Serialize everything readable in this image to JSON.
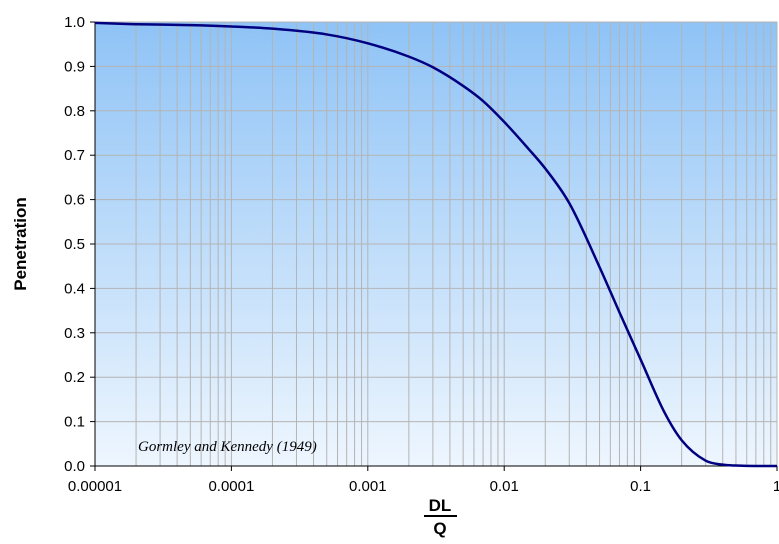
{
  "chart_data": {
    "type": "line",
    "title": "",
    "xlabel": {
      "numerator": "DL",
      "denominator": "Q"
    },
    "ylabel": "Penetration",
    "xscale": "log",
    "xlim": [
      1e-05,
      1
    ],
    "ylim": [
      0,
      1
    ],
    "grid": true,
    "xticks": [
      "0.00001",
      "0.0001",
      "0.001",
      "0.01",
      "0.1",
      "1"
    ],
    "yticks": [
      "0.0",
      "0.1",
      "0.2",
      "0.3",
      "0.4",
      "0.5",
      "0.6",
      "0.7",
      "0.8",
      "0.9",
      "1.0"
    ],
    "annotation": "Gormley and Kennedy (1949)",
    "colors": {
      "line": "#000080",
      "background_top": "#8fc3f6",
      "background_bottom": "#eef6fe",
      "grid": "#b4b4b4"
    },
    "series": [
      {
        "x": [
          1e-05,
          2e-05,
          5e-05,
          0.0001,
          0.0002,
          0.0005,
          0.001,
          0.002,
          0.003,
          0.005,
          0.007,
          0.01,
          0.015,
          0.02,
          0.03,
          0.05,
          0.07,
          0.1,
          0.15,
          0.2,
          0.3,
          0.4,
          0.5,
          0.7,
          1
        ],
        "y": [
          0.998,
          0.995,
          0.993,
          0.99,
          0.985,
          0.972,
          0.952,
          0.922,
          0.898,
          0.856,
          0.822,
          0.775,
          0.715,
          0.67,
          0.592,
          0.448,
          0.346,
          0.24,
          0.12,
          0.058,
          0.012,
          0.003,
          0.001,
          0.0,
          0.0
        ]
      }
    ]
  }
}
